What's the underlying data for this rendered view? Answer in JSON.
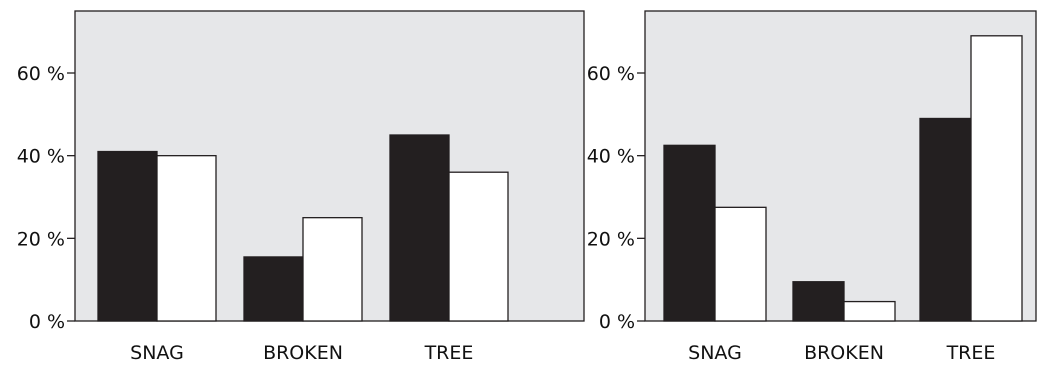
{
  "chart_data": [
    {
      "type": "bar",
      "categories": [
        "SNAG",
        "BROKEN",
        "TREE"
      ],
      "series": [
        {
          "values": [
            41,
            15.5,
            45
          ],
          "color": "#231f20"
        },
        {
          "values": [
            40,
            25,
            36
          ],
          "color": "#ffffff"
        }
      ],
      "ylim": [
        0,
        75
      ],
      "yticks": [
        0,
        20,
        40,
        60
      ],
      "ytick_labels": [
        "0 %",
        "20 %",
        "40 %",
        "60 %"
      ],
      "plot_background": "#e6e7e9",
      "grid": false,
      "title": "",
      "xlabel": "",
      "ylabel": ""
    },
    {
      "type": "bar",
      "categories": [
        "SNAG",
        "BROKEN",
        "TREE"
      ],
      "series": [
        {
          "values": [
            42.5,
            9.5,
            49
          ],
          "color": "#231f20"
        },
        {
          "values": [
            27.5,
            4.7,
            69
          ],
          "color": "#ffffff"
        }
      ],
      "ylim": [
        0,
        75
      ],
      "yticks": [
        0,
        20,
        40,
        60
      ],
      "ytick_labels": [
        "0 %",
        "20 %",
        "40 %",
        "60 %"
      ],
      "plot_background": "#e6e7e9",
      "grid": false,
      "title": "",
      "xlabel": "",
      "ylabel": ""
    }
  ]
}
